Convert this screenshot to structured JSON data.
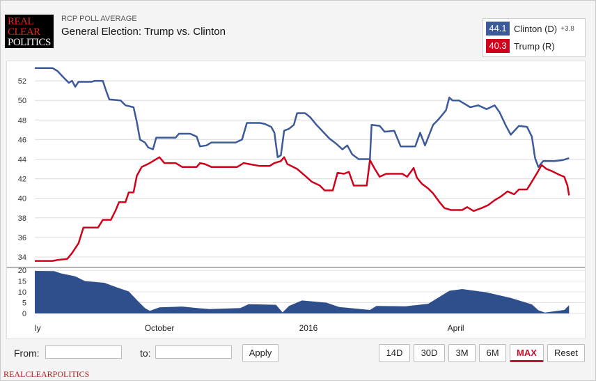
{
  "header": {
    "logo_lines": [
      "REAL",
      "CLEAR",
      "POLITICS"
    ],
    "kicker": "RCP POLL AVERAGE",
    "title": "General Election: Trump vs. Clinton"
  },
  "legend": {
    "clinton": {
      "value": "44.1",
      "label": "Clinton (D)",
      "spread": "+3.8",
      "color": "#3c5a99"
    },
    "trump": {
      "value": "40.3",
      "label": "Trump (R)",
      "color": "#d0021b"
    }
  },
  "chart_data": [
    {
      "type": "line",
      "title": "",
      "xlabel": "",
      "ylabel": "",
      "ylim": [
        33,
        54
      ],
      "yticks": [
        34,
        36,
        38,
        40,
        42,
        44,
        46,
        48,
        50,
        52
      ],
      "xlim": [
        "2015-07-16",
        "2016-06-12"
      ],
      "xticks": [
        {
          "label": "ly",
          "date": "2015-07-16"
        },
        {
          "label": "October",
          "date": "2015-10-01"
        },
        {
          "label": "2016",
          "date": "2016-01-01"
        },
        {
          "label": "April",
          "date": "2016-04-01"
        }
      ],
      "grid": true,
      "series": [
        {
          "name": "Clinton (D)",
          "color": "#3c5a99",
          "points": [
            [
              "2015-07-16",
              53.3
            ],
            [
              "2015-07-27",
              53.3
            ],
            [
              "2015-07-30",
              53.0
            ],
            [
              "2015-08-03",
              52.3
            ],
            [
              "2015-08-06",
              51.8
            ],
            [
              "2015-08-08",
              52.0
            ],
            [
              "2015-08-10",
              51.4
            ],
            [
              "2015-08-12",
              51.9
            ],
            [
              "2015-08-20",
              51.9
            ],
            [
              "2015-08-22",
              52.0
            ],
            [
              "2015-08-27",
              52.0
            ],
            [
              "2015-08-29",
              51.0
            ],
            [
              "2015-08-31",
              50.1
            ],
            [
              "2015-09-07",
              50.0
            ],
            [
              "2015-09-10",
              49.5
            ],
            [
              "2015-09-15",
              49.3
            ],
            [
              "2015-09-17",
              47.8
            ],
            [
              "2015-09-19",
              46.0
            ],
            [
              "2015-09-22",
              45.7
            ],
            [
              "2015-09-24",
              45.2
            ],
            [
              "2015-09-27",
              45.0
            ],
            [
              "2015-09-29",
              46.2
            ],
            [
              "2015-10-11",
              46.2
            ],
            [
              "2015-10-13",
              46.6
            ],
            [
              "2015-10-20",
              46.6
            ],
            [
              "2015-10-24",
              46.3
            ],
            [
              "2015-10-26",
              45.3
            ],
            [
              "2015-10-30",
              45.4
            ],
            [
              "2015-11-02",
              45.7
            ],
            [
              "2015-11-17",
              45.7
            ],
            [
              "2015-11-21",
              46.0
            ],
            [
              "2015-11-24",
              47.7
            ],
            [
              "2015-12-02",
              47.7
            ],
            [
              "2015-12-05",
              47.6
            ],
            [
              "2015-12-09",
              47.3
            ],
            [
              "2015-12-11",
              46.7
            ],
            [
              "2015-12-13",
              44.2
            ],
            [
              "2015-12-15",
              44.4
            ],
            [
              "2015-12-17",
              46.9
            ],
            [
              "2015-12-20",
              47.1
            ],
            [
              "2015-12-23",
              47.5
            ],
            [
              "2015-12-25",
              48.7
            ],
            [
              "2015-12-30",
              48.7
            ],
            [
              "2016-01-02",
              48.3
            ],
            [
              "2016-01-06",
              47.5
            ],
            [
              "2016-01-10",
              46.8
            ],
            [
              "2016-01-14",
              46.1
            ],
            [
              "2016-01-18",
              45.6
            ],
            [
              "2016-01-22",
              45.0
            ],
            [
              "2016-01-25",
              45.4
            ],
            [
              "2016-01-28",
              44.5
            ],
            [
              "2016-02-01",
              44.0
            ],
            [
              "2016-02-08",
              44.0
            ],
            [
              "2016-02-09",
              47.5
            ],
            [
              "2016-02-14",
              47.4
            ],
            [
              "2016-02-17",
              46.8
            ],
            [
              "2016-02-23",
              46.9
            ],
            [
              "2016-02-27",
              45.3
            ],
            [
              "2016-03-07",
              45.3
            ],
            [
              "2016-03-10",
              46.7
            ],
            [
              "2016-03-13",
              45.4
            ],
            [
              "2016-03-18",
              47.5
            ],
            [
              "2016-03-21",
              48.0
            ],
            [
              "2016-03-23",
              48.4
            ],
            [
              "2016-03-26",
              49.0
            ],
            [
              "2016-03-28",
              50.3
            ],
            [
              "2016-03-30",
              50.0
            ],
            [
              "2016-04-03",
              50.0
            ],
            [
              "2016-04-06",
              49.7
            ],
            [
              "2016-04-10",
              49.3
            ],
            [
              "2016-04-15",
              49.5
            ],
            [
              "2016-04-20",
              49.1
            ],
            [
              "2016-04-25",
              49.5
            ],
            [
              "2016-04-28",
              48.8
            ],
            [
              "2016-05-02",
              47.4
            ],
            [
              "2016-05-05",
              46.5
            ],
            [
              "2016-05-10",
              47.4
            ],
            [
              "2016-05-15",
              47.3
            ],
            [
              "2016-05-18",
              46.3
            ],
            [
              "2016-05-20",
              44.1
            ],
            [
              "2016-05-22",
              43.2
            ],
            [
              "2016-05-25",
              43.8
            ],
            [
              "2016-06-01",
              43.8
            ],
            [
              "2016-06-06",
              43.9
            ],
            [
              "2016-06-10",
              44.1
            ]
          ]
        },
        {
          "name": "Trump (R)",
          "color": "#d0021b",
          "points": [
            [
              "2015-07-16",
              33.6
            ],
            [
              "2015-07-27",
              33.6
            ],
            [
              "2015-07-30",
              33.7
            ],
            [
              "2015-08-05",
              33.8
            ],
            [
              "2015-08-08",
              34.4
            ],
            [
              "2015-08-12",
              35.4
            ],
            [
              "2015-08-15",
              37.0
            ],
            [
              "2015-08-24",
              37.0
            ],
            [
              "2015-08-27",
              37.8
            ],
            [
              "2015-09-01",
              37.8
            ],
            [
              "2015-09-04",
              38.8
            ],
            [
              "2015-09-06",
              39.6
            ],
            [
              "2015-09-10",
              39.6
            ],
            [
              "2015-09-12",
              40.6
            ],
            [
              "2015-09-15",
              40.6
            ],
            [
              "2015-09-17",
              42.3
            ],
            [
              "2015-09-20",
              43.2
            ],
            [
              "2015-09-25",
              43.6
            ],
            [
              "2015-10-01",
              44.2
            ],
            [
              "2015-10-04",
              43.6
            ],
            [
              "2015-10-11",
              43.6
            ],
            [
              "2015-10-15",
              43.2
            ],
            [
              "2015-10-24",
              43.2
            ],
            [
              "2015-10-26",
              43.6
            ],
            [
              "2015-10-29",
              43.5
            ],
            [
              "2015-11-02",
              43.2
            ],
            [
              "2015-11-18",
              43.2
            ],
            [
              "2015-11-22",
              43.6
            ],
            [
              "2015-12-02",
              43.3
            ],
            [
              "2015-12-08",
              43.3
            ],
            [
              "2015-12-11",
              43.6
            ],
            [
              "2015-12-15",
              43.8
            ],
            [
              "2015-12-17",
              44.2
            ],
            [
              "2015-12-19",
              43.5
            ],
            [
              "2015-12-25",
              43.0
            ],
            [
              "2015-12-30",
              42.3
            ],
            [
              "2016-01-03",
              41.7
            ],
            [
              "2016-01-08",
              41.3
            ],
            [
              "2016-01-11",
              40.8
            ],
            [
              "2016-01-16",
              40.8
            ],
            [
              "2016-01-19",
              42.6
            ],
            [
              "2016-01-23",
              42.5
            ],
            [
              "2016-01-26",
              42.7
            ],
            [
              "2016-01-29",
              41.3
            ],
            [
              "2016-02-06",
              41.3
            ],
            [
              "2016-02-08",
              43.9
            ],
            [
              "2016-02-11",
              43.0
            ],
            [
              "2016-02-14",
              42.2
            ],
            [
              "2016-02-18",
              42.5
            ],
            [
              "2016-02-28",
              42.5
            ],
            [
              "2016-03-02",
              42.2
            ],
            [
              "2016-03-06",
              43.1
            ],
            [
              "2016-03-08",
              42.1
            ],
            [
              "2016-03-11",
              41.5
            ],
            [
              "2016-03-15",
              41.0
            ],
            [
              "2016-03-18",
              40.5
            ],
            [
              "2016-03-22",
              39.6
            ],
            [
              "2016-03-25",
              39.0
            ],
            [
              "2016-03-29",
              38.8
            ],
            [
              "2016-04-05",
              38.8
            ],
            [
              "2016-04-08",
              39.1
            ],
            [
              "2016-04-12",
              38.7
            ],
            [
              "2016-04-17",
              39.0
            ],
            [
              "2016-04-21",
              39.3
            ],
            [
              "2016-04-25",
              39.8
            ],
            [
              "2016-04-29",
              40.2
            ],
            [
              "2016-05-03",
              40.7
            ],
            [
              "2016-05-07",
              40.4
            ],
            [
              "2016-05-10",
              40.9
            ],
            [
              "2016-05-15",
              40.9
            ],
            [
              "2016-05-18",
              41.7
            ],
            [
              "2016-05-22",
              42.8
            ],
            [
              "2016-05-24",
              43.4
            ],
            [
              "2016-05-27",
              43.0
            ],
            [
              "2016-05-30",
              42.8
            ],
            [
              "2016-06-04",
              42.4
            ],
            [
              "2016-06-07",
              42.2
            ],
            [
              "2016-06-09",
              41.3
            ],
            [
              "2016-06-10",
              40.3
            ]
          ]
        }
      ]
    },
    {
      "type": "area",
      "title": "",
      "ylim": [
        0,
        21
      ],
      "yticks": [
        0,
        5,
        10,
        15,
        20
      ],
      "series": [
        {
          "name": "Clinton (D) spread",
          "color": "#2f4f8c",
          "points": [
            [
              "2015-07-16",
              19.7
            ],
            [
              "2015-07-28",
              19.6
            ],
            [
              "2015-08-01",
              18.6
            ],
            [
              "2015-08-10",
              17.2
            ],
            [
              "2015-08-16",
              15.0
            ],
            [
              "2015-08-28",
              14.2
            ],
            [
              "2015-09-05",
              12.0
            ],
            [
              "2015-09-12",
              10.2
            ],
            [
              "2015-09-18",
              5.5
            ],
            [
              "2015-09-22",
              2.5
            ],
            [
              "2015-09-25",
              1.2
            ],
            [
              "2015-10-01",
              2.8
            ],
            [
              "2015-10-15",
              3.2
            ],
            [
              "2015-10-26",
              2.4
            ],
            [
              "2015-11-01",
              2.0
            ],
            [
              "2015-11-20",
              2.5
            ],
            [
              "2015-11-25",
              4.3
            ],
            [
              "2015-12-12",
              4.0
            ],
            [
              "2015-12-16",
              0.5
            ],
            [
              "2015-12-20",
              3.5
            ],
            [
              "2015-12-28",
              6.0
            ],
            [
              "2016-01-12",
              5.0
            ],
            [
              "2016-01-20",
              3.0
            ],
            [
              "2016-02-08",
              1.6
            ],
            [
              "2016-02-12",
              3.5
            ],
            [
              "2016-03-01",
              3.3
            ],
            [
              "2016-03-15",
              4.5
            ],
            [
              "2016-03-28",
              10.5
            ],
            [
              "2016-04-05",
              11.3
            ],
            [
              "2016-04-20",
              9.8
            ],
            [
              "2016-05-05",
              7.2
            ],
            [
              "2016-05-18",
              4.2
            ],
            [
              "2016-05-22",
              1.5
            ],
            [
              "2016-05-26",
              0.4
            ],
            [
              "2016-06-07",
              1.6
            ],
            [
              "2016-06-10",
              3.8
            ]
          ]
        }
      ]
    }
  ],
  "controls": {
    "from_label": "From:",
    "to_label": "to:",
    "from_value": "",
    "to_value": "",
    "apply_label": "Apply",
    "ranges": [
      "14D",
      "30D",
      "3M",
      "6M",
      "MAX"
    ],
    "active_range": "MAX",
    "reset_label": "Reset"
  },
  "footer_brand": "REALCLEARPOLITICS"
}
